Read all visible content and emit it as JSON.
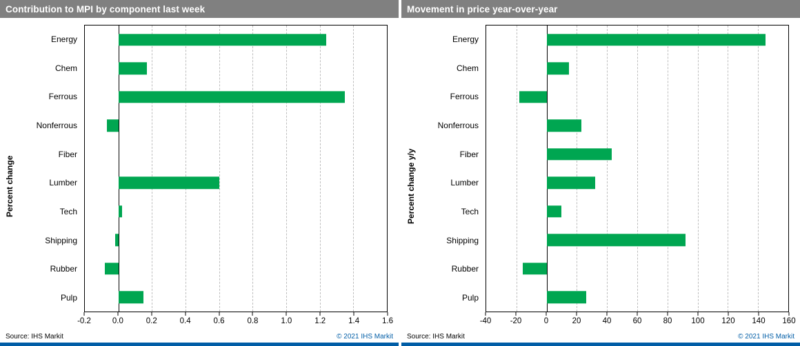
{
  "brand": {
    "bar_green": "#00a651",
    "header_bg": "#808080",
    "ihs_blue": "#005da6",
    "grid_gray": "#bdbdbd"
  },
  "chart_data": [
    {
      "type": "bar",
      "orientation": "horizontal",
      "title": "Contribution to MPI by component last week",
      "ylabel": "Percent change",
      "source": "Source: IHS Markit",
      "copyright": "© 2021 IHS Markit",
      "categories": [
        "Energy",
        "Chem",
        "Ferrous",
        "Nonferrous",
        "Fiber",
        "Lumber",
        "Tech",
        "Shipping",
        "Rubber",
        "Pulp"
      ],
      "values": [
        1.24,
        0.17,
        1.35,
        -0.07,
        0,
        0.6,
        0.02,
        -0.02,
        -0.08,
        0.15
      ],
      "xlim": [
        -0.2,
        1.6
      ],
      "grid": true,
      "legend": "none",
      "xticks": [
        {
          "v": -0.2,
          "label": "-0.2"
        },
        {
          "v": 0,
          "label": "0.0"
        },
        {
          "v": 0.2,
          "label": "0.2"
        },
        {
          "v": 0.4,
          "label": "0.4"
        },
        {
          "v": 0.6,
          "label": "0.6"
        },
        {
          "v": 0.8,
          "label": "0.8"
        },
        {
          "v": 1,
          "label": "1.0"
        },
        {
          "v": 1.2,
          "label": "1.2"
        },
        {
          "v": 1.4,
          "label": "1.4"
        },
        {
          "v": 1.6,
          "label": "1.6"
        }
      ]
    },
    {
      "type": "bar",
      "orientation": "horizontal",
      "title": "Movement in price year-over-year",
      "ylabel": "Percent change y/y",
      "source": "Source: IHS Markit",
      "copyright": "© 2021 IHS Markit",
      "categories": [
        "Energy",
        "Chem",
        "Ferrous",
        "Nonferrous",
        "Fiber",
        "Lumber",
        "Tech",
        "Shipping",
        "Rubber",
        "Pulp"
      ],
      "values": [
        145,
        15,
        -18,
        23,
        43,
        32,
        10,
        92,
        -16,
        26
      ],
      "xlim": [
        -40,
        160
      ],
      "grid": true,
      "legend": "none",
      "xticks": [
        {
          "v": -40,
          "label": "-40"
        },
        {
          "v": -20,
          "label": "-20"
        },
        {
          "v": 0,
          "label": "0"
        },
        {
          "v": 20,
          "label": "20"
        },
        {
          "v": 40,
          "label": "40"
        },
        {
          "v": 60,
          "label": "60"
        },
        {
          "v": 80,
          "label": "80"
        },
        {
          "v": 100,
          "label": "100"
        },
        {
          "v": 120,
          "label": "120"
        },
        {
          "v": 140,
          "label": "140"
        },
        {
          "v": 160,
          "label": "160"
        }
      ]
    }
  ]
}
